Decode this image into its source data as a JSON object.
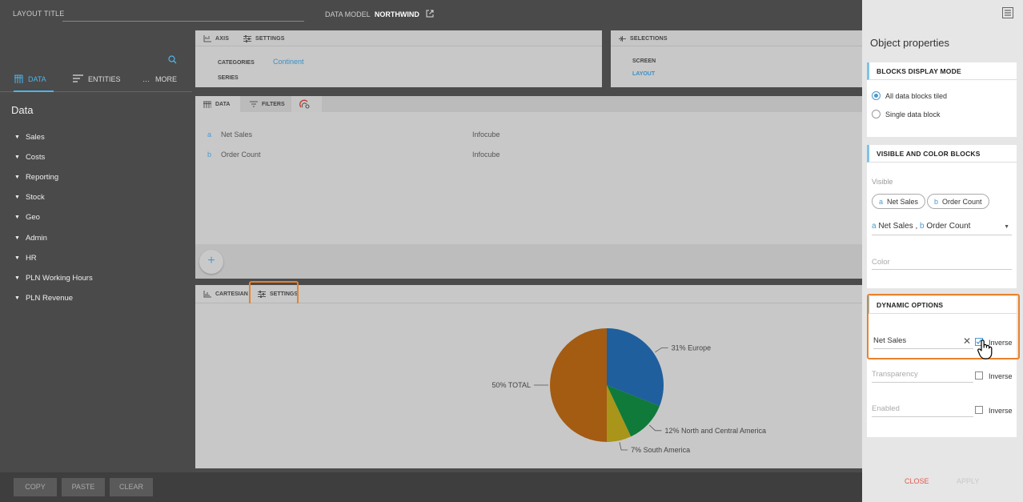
{
  "topbar": {
    "layout_title_label": "LAYOUT TITLE",
    "layout_title_value": "",
    "data_model_label": "DATA MODEL",
    "data_model_name": "NORTHWIND"
  },
  "left": {
    "tabs": [
      {
        "label": "DATA",
        "icon": "data-icon"
      },
      {
        "label": "ENTITIES",
        "icon": "entities-icon"
      },
      {
        "label": "MORE",
        "icon": "more-icon"
      }
    ],
    "title": "Data",
    "items": [
      "Sales",
      "Costs",
      "Reporting",
      "Stock",
      "Geo",
      "Admin",
      "HR",
      "PLN Working Hours",
      "PLN Revenue"
    ]
  },
  "bottom": {
    "copy": "COPY",
    "paste": "PASTE",
    "clear": "CLEAR"
  },
  "axis_panel": {
    "tab_axis": "AXIS",
    "tab_settings": "SETTINGS",
    "categories_label": "CATEGORIES",
    "categories_value": "Continent",
    "series_label": "SERIES"
  },
  "selections_panel": {
    "title": "SELECTIONS",
    "screen": "SCREEN",
    "layout": "LAYOUT"
  },
  "data_tabs": {
    "data": "DATA",
    "filters": "FILTERS"
  },
  "data_rows": [
    {
      "letter": "a",
      "name": "Net Sales",
      "source": "Infocube"
    },
    {
      "letter": "b",
      "name": "Order Count",
      "source": "Infocube"
    }
  ],
  "add_symbol": "+",
  "chart_tabs": {
    "cartesian": "CARTESIAN",
    "settings": "SETTINGS"
  },
  "chart_data": {
    "type": "pie",
    "slices": [
      {
        "label": "31% Europe",
        "value": 31,
        "color": "#1f5f9e"
      },
      {
        "label": "12% North and Central America",
        "value": 12,
        "color": "#0f7a3a"
      },
      {
        "label": "7% South America",
        "value": 7,
        "color": "#a8951a"
      },
      {
        "label": "50% TOTAL",
        "value": 50,
        "color": "#a45b12"
      }
    ]
  },
  "props": {
    "title": "Object properties",
    "blocks_display": {
      "header": "BLOCKS DISPLAY MODE",
      "options": [
        "All data blocks tiled",
        "Single data block"
      ],
      "selected": 0
    },
    "visible_blocks": {
      "header": "VISIBLE AND COLOR BLOCKS",
      "visible_label": "Visible",
      "chips": [
        {
          "letter": "a",
          "label": "Net Sales"
        },
        {
          "letter": "b",
          "label": "Order Count"
        }
      ],
      "select": {
        "a": "a",
        "a_label": "Net Sales ,",
        "b": "b",
        "b_label": "Order Count"
      },
      "color_label": "Color"
    },
    "dynamic": {
      "header": "DYNAMIC OPTIONS",
      "net_sales_value": "Net Sales",
      "inverse": "Inverse",
      "transparency_placeholder": "Transparency",
      "enabled_placeholder": "Enabled"
    },
    "close": "CLOSE",
    "apply": "APPLY"
  },
  "colors": {
    "accent": "#4b9ad1",
    "highlight": "#e8822d",
    "close": "#e05a4c"
  }
}
